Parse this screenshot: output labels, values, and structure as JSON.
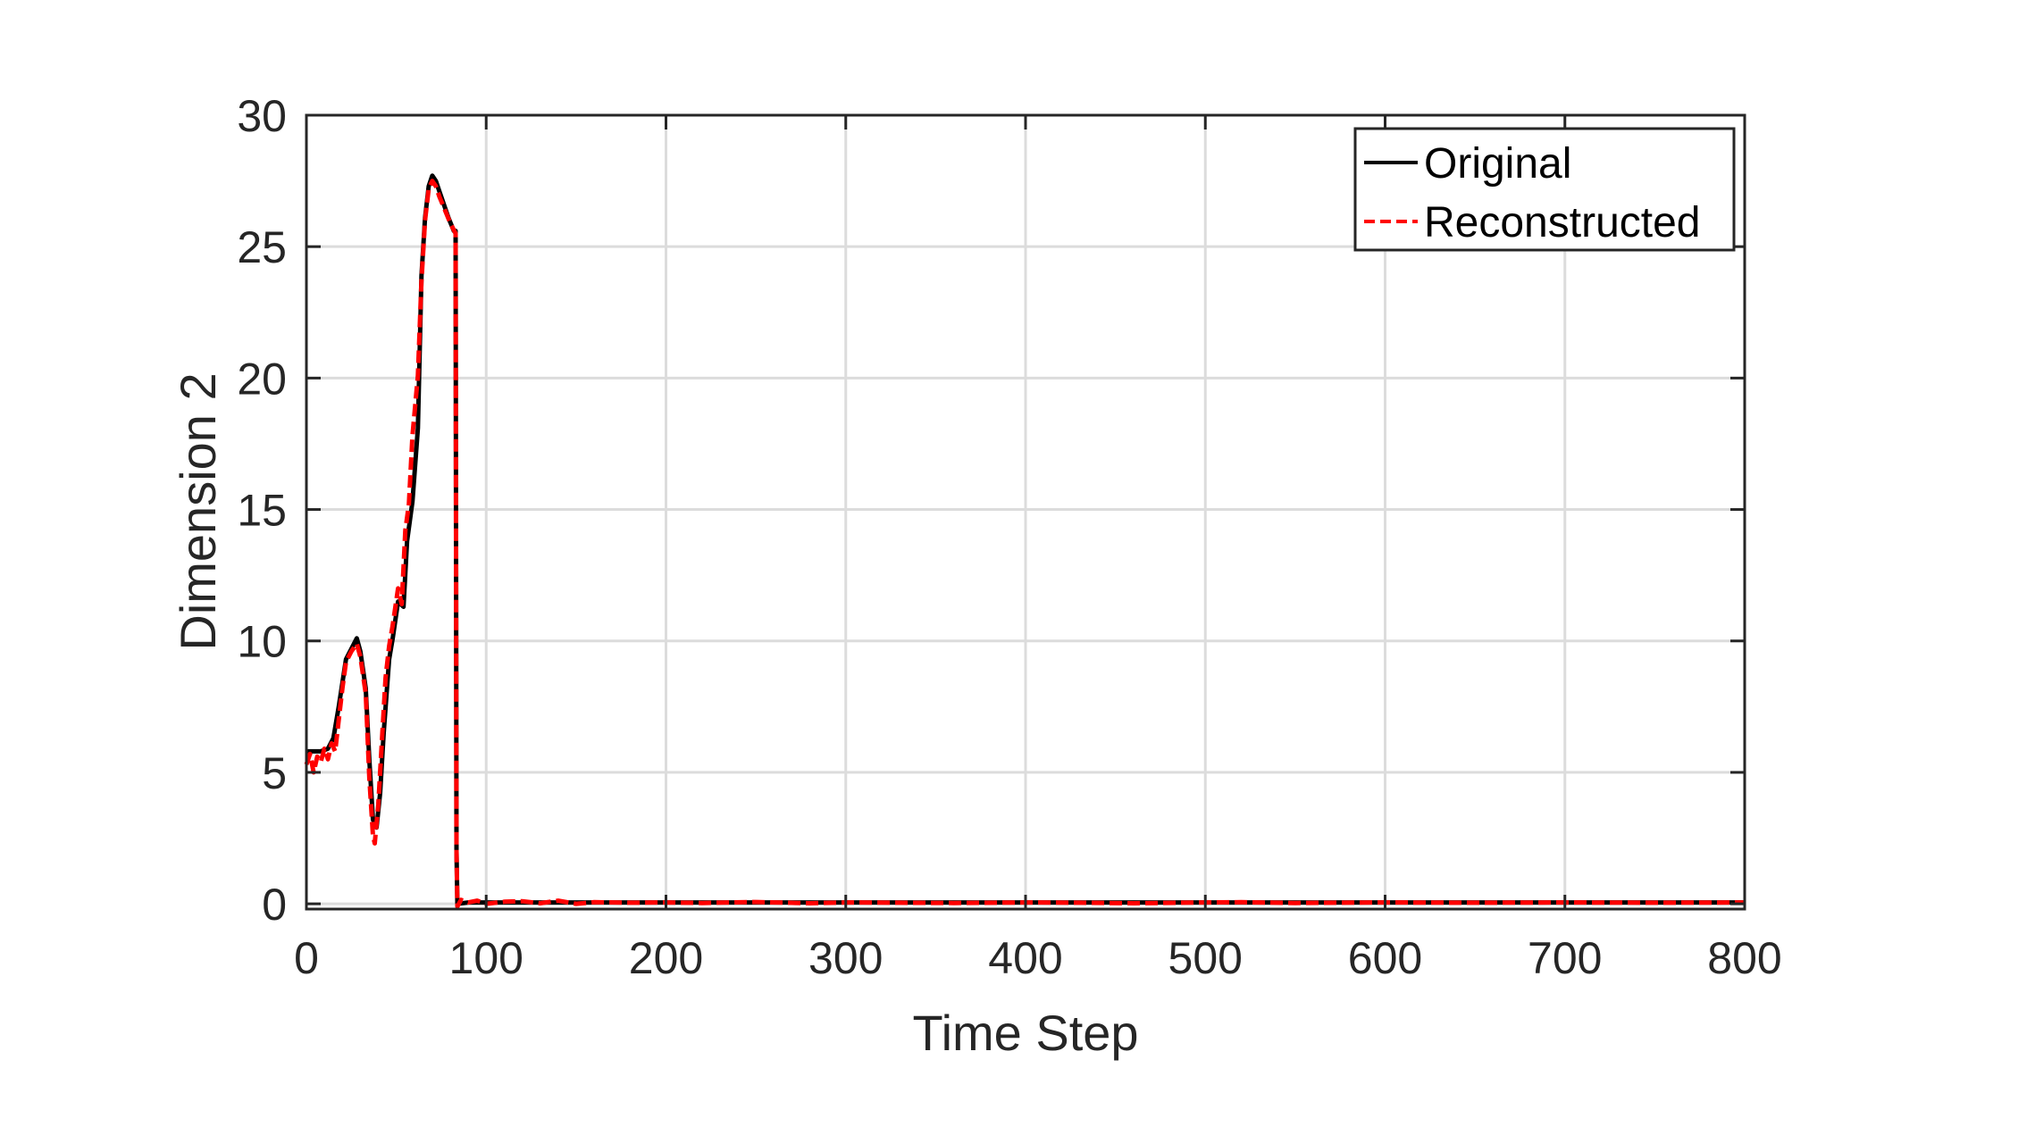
{
  "chart_data": {
    "type": "line",
    "title": "",
    "xlabel": "Time Step",
    "ylabel": "Dimension 2",
    "xlim": [
      0,
      800
    ],
    "ylim": [
      -0.2,
      30
    ],
    "xticks": [
      0,
      100,
      200,
      300,
      400,
      500,
      600,
      700,
      800
    ],
    "yticks": [
      0,
      5,
      10,
      15,
      20,
      25,
      30
    ],
    "xtick_labels": [
      "0",
      "100",
      "200",
      "300",
      "400",
      "500",
      "600",
      "700",
      "800"
    ],
    "ytick_labels": [
      "0",
      "5",
      "10",
      "15",
      "20",
      "25",
      "30"
    ],
    "grid": true,
    "legend_position": "top-right",
    "series": [
      {
        "name": "Original",
        "color": "#000000",
        "style": "solid",
        "x": [
          0,
          8,
          12,
          15,
          18,
          22,
          25,
          28,
          30,
          33,
          35,
          37,
          39,
          41,
          43,
          46,
          48,
          51,
          54,
          56,
          59,
          62,
          64,
          66,
          68,
          70,
          72,
          74,
          76,
          79,
          82,
          83,
          83.5,
          84,
          90,
          100,
          150,
          200,
          300,
          400,
          500,
          600,
          700,
          800
        ],
        "values": [
          5.8,
          5.8,
          5.9,
          6.3,
          7.5,
          9.3,
          9.7,
          10.1,
          9.6,
          8.2,
          5.5,
          3.2,
          2.9,
          4.2,
          6.5,
          9.3,
          10.1,
          11.5,
          11.3,
          13.8,
          15.3,
          18.1,
          23.9,
          26.1,
          27.3,
          27.7,
          27.5,
          27.1,
          26.7,
          26.1,
          25.6,
          25.6,
          2.0,
          0.0,
          0.05,
          0.05,
          0.05,
          0.05,
          0.05,
          0.05,
          0.05,
          0.05,
          0.05,
          0.05
        ]
      },
      {
        "name": "Reconstructed",
        "color": "#ff0000",
        "style": "dashed",
        "x": [
          0,
          2,
          4,
          6,
          8,
          10,
          12,
          14,
          16,
          18,
          20,
          22,
          25,
          28,
          30,
          33,
          35,
          37,
          38,
          40,
          42,
          44,
          46,
          48,
          51,
          53,
          55,
          57,
          59,
          62,
          64,
          66,
          68,
          70,
          72,
          74,
          77,
          80,
          83,
          83.5,
          84,
          86,
          90,
          95,
          100,
          110,
          120,
          130,
          140,
          150,
          160,
          180,
          200,
          220,
          250,
          280,
          300,
          330,
          360,
          400,
          430,
          460,
          500,
          520,
          550,
          600,
          650,
          700,
          750,
          800
        ],
        "values": [
          5.3,
          5.7,
          5.0,
          5.6,
          5.4,
          5.9,
          5.5,
          6.1,
          5.8,
          7.0,
          8.2,
          9.2,
          9.6,
          9.9,
          9.4,
          8.0,
          4.8,
          2.6,
          2.3,
          3.8,
          6.2,
          8.6,
          9.8,
          10.6,
          12.0,
          11.4,
          14.2,
          15.2,
          17.8,
          20.1,
          23.7,
          26.0,
          27.2,
          27.5,
          27.3,
          26.9,
          26.4,
          25.9,
          25.5,
          2.0,
          -0.1,
          0.15,
          0.05,
          0.12,
          0.0,
          0.08,
          0.1,
          0.02,
          0.12,
          0.0,
          0.06,
          0.04,
          0.05,
          0.03,
          0.07,
          0.02,
          0.05,
          0.04,
          0.03,
          0.05,
          0.04,
          0.02,
          0.05,
          0.06,
          0.03,
          0.05,
          0.04,
          0.05,
          0.04,
          0.05
        ]
      }
    ]
  }
}
